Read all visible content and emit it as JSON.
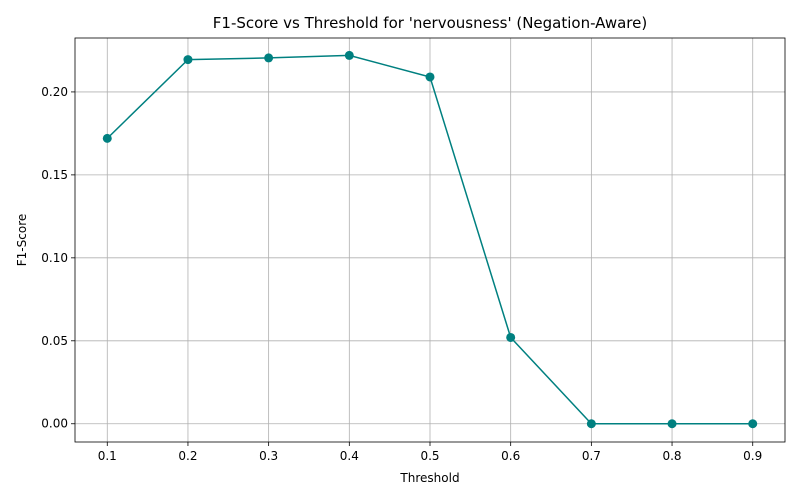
{
  "chart_data": {
    "type": "line",
    "title": "F1-Score vs Threshold for 'nervousness' (Negation-Aware)",
    "xlabel": "Threshold",
    "ylabel": "F1-Score",
    "x": [
      0.1,
      0.2,
      0.3,
      0.4,
      0.5,
      0.6,
      0.7,
      0.8,
      0.9
    ],
    "series": [
      {
        "values": [
          0.172,
          0.2195,
          0.2205,
          0.222,
          0.209,
          0.052,
          0.0,
          0.0,
          0.0
        ]
      }
    ],
    "xlim": [
      0.06,
      0.94
    ],
    "ylim": [
      -0.011,
      0.2325
    ],
    "xticks": [
      "0.1",
      "0.2",
      "0.3",
      "0.4",
      "0.5",
      "0.6",
      "0.7",
      "0.8",
      "0.9"
    ],
    "xtick_values": [
      0.1,
      0.2,
      0.3,
      0.4,
      0.5,
      0.6,
      0.7,
      0.8,
      0.9
    ],
    "yticks": [
      "0.00",
      "0.05",
      "0.10",
      "0.15",
      "0.20"
    ],
    "ytick_values": [
      0.0,
      0.05,
      0.1,
      0.15,
      0.2
    ],
    "grid": true,
    "marker": "circle",
    "line_color": "#008080",
    "grid_color": "#b0b0b0"
  }
}
